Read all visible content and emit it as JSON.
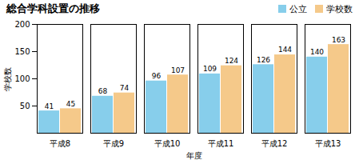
{
  "chart_data": {
    "type": "bar",
    "title": "総合学科設置の推移",
    "xlabel": "年度",
    "ylabel": "学校数",
    "categories": [
      "平成8",
      "平成9",
      "平成10",
      "平成11",
      "平成12",
      "平成13"
    ],
    "series": [
      {
        "name": "公立",
        "color": "#87CEEB",
        "values": [
          41,
          68,
          96,
          109,
          126,
          140
        ]
      },
      {
        "name": "学校数",
        "color": "#F5C98A",
        "values": [
          45,
          74,
          107,
          124,
          144,
          163
        ]
      }
    ],
    "ylim": [
      0,
      200
    ],
    "yticks": [
      50,
      100,
      150,
      200
    ],
    "grid": false,
    "legend": "top",
    "data_labels": true
  }
}
